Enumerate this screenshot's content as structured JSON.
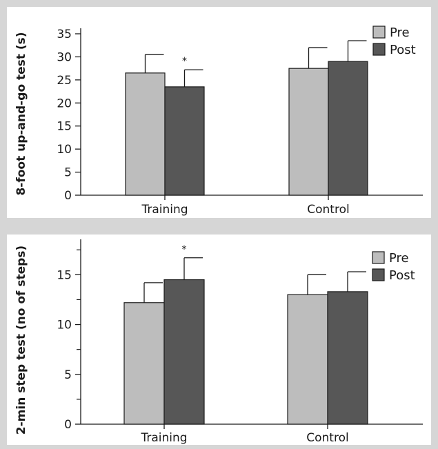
{
  "colors": {
    "background": "#d6d6d6",
    "panel": "#ffffff",
    "pre": "#bdbdbd",
    "post": "#575757",
    "stroke": "#1a1a1a"
  },
  "chart_data": [
    {
      "type": "bar",
      "title": "",
      "xlabel": "",
      "ylabel": "8-foot up-and-go test (s)",
      "ylim": [
        0,
        35
      ],
      "yticks": [
        0,
        5,
        10,
        15,
        20,
        25,
        30,
        35
      ],
      "categories": [
        "Training",
        "Control"
      ],
      "series": [
        {
          "name": "Pre",
          "values": [
            26.5,
            27.5
          ],
          "error": [
            4.0,
            4.5
          ]
        },
        {
          "name": "Post",
          "values": [
            23.5,
            29.0
          ],
          "error": [
            3.7,
            4.5
          ]
        }
      ],
      "annotations": [
        {
          "text": "*",
          "category": "Training",
          "series": "Post"
        }
      ],
      "legend": {
        "entries": [
          "Pre",
          "Post"
        ],
        "position": "top-right"
      }
    },
    {
      "type": "bar",
      "title": "",
      "xlabel": "",
      "ylabel": "2-min step test (no of steps)",
      "ylim": [
        0,
        18
      ],
      "yticks": [
        0,
        5,
        10,
        15
      ],
      "minor_yticks": [
        2.5,
        7.5,
        12.5,
        17.5
      ],
      "categories": [
        "Training",
        "Control"
      ],
      "series": [
        {
          "name": "Pre",
          "values": [
            12.2,
            13.0
          ],
          "error": [
            2.0,
            2.0
          ]
        },
        {
          "name": "Post",
          "values": [
            14.5,
            13.3
          ],
          "error": [
            2.2,
            2.0
          ]
        }
      ],
      "annotations": [
        {
          "text": "*",
          "category": "Training",
          "series": "Post"
        }
      ],
      "legend": {
        "entries": [
          "Pre",
          "Post"
        ],
        "position": "top-right"
      }
    }
  ]
}
